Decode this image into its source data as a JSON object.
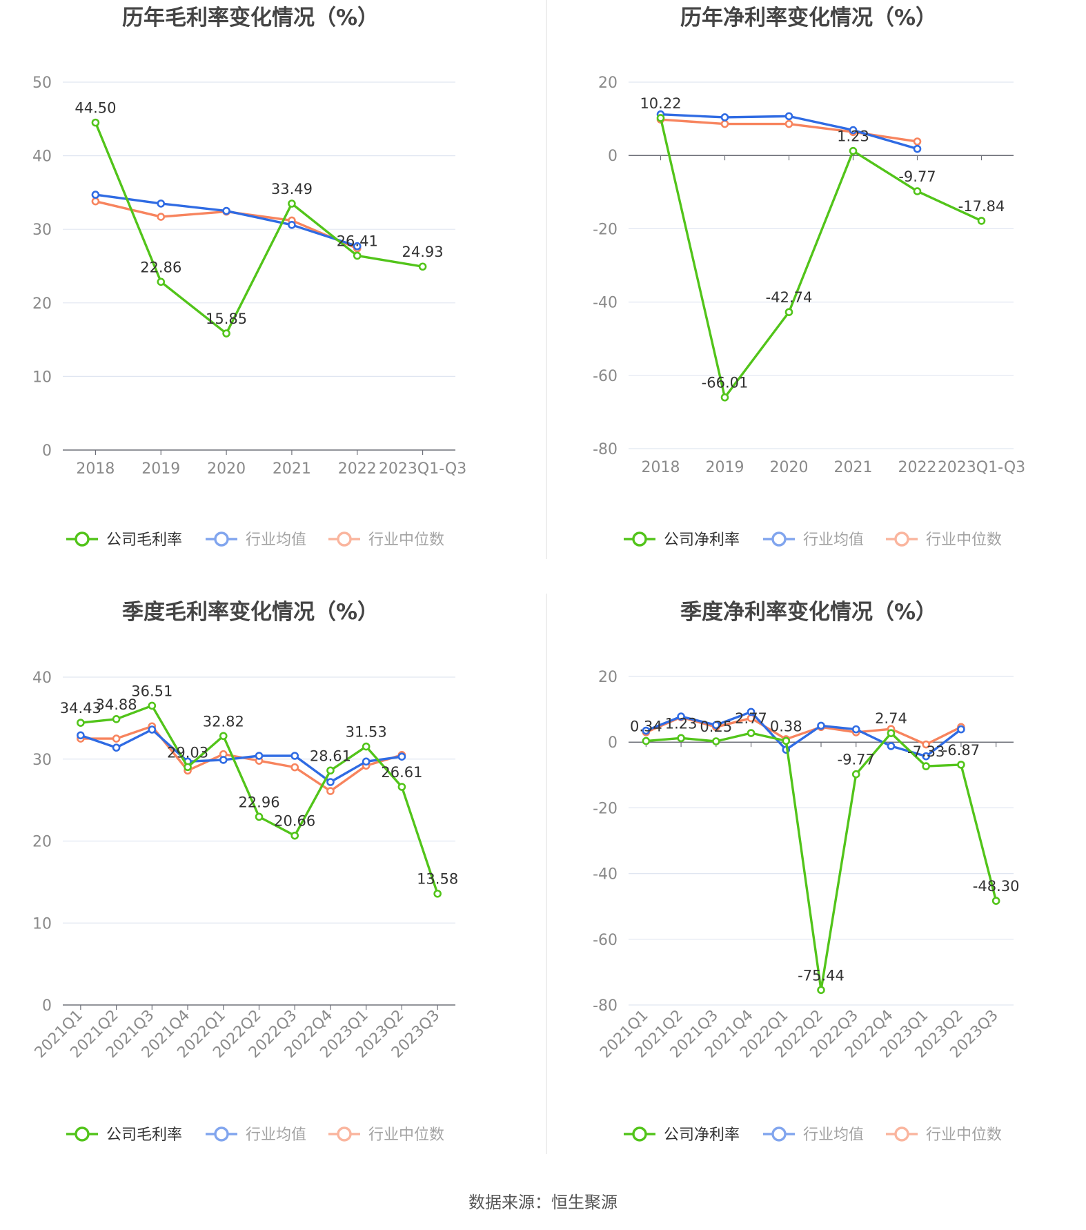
{
  "colors": {
    "company": "#52c41a",
    "avg": "#2f6be3",
    "median": "#f7845e"
  },
  "source_text": "数据来源：恒生聚源",
  "chart_data": [
    {
      "type": "line",
      "title": "历年毛利率变化情况（%）",
      "categories": [
        "2018",
        "2019",
        "2020",
        "2021",
        "2022",
        "2023Q1-Q3"
      ],
      "ylim": [
        0,
        50
      ],
      "yticks": [
        0,
        10,
        20,
        30,
        40,
        50
      ],
      "legend": "bottom",
      "series": [
        {
          "name": "公司毛利率",
          "key": "company",
          "values": [
            44.5,
            22.86,
            15.85,
            33.49,
            26.41,
            24.93
          ],
          "labels": [
            "44.50",
            "22.86",
            "15.85",
            "33.49",
            "26.41",
            "24.93"
          ]
        },
        {
          "name": "行业均值",
          "key": "avg",
          "values": [
            34.7,
            33.5,
            32.5,
            30.6,
            27.7,
            null
          ]
        },
        {
          "name": "行业中位数",
          "key": "median",
          "values": [
            33.8,
            31.7,
            32.4,
            31.2,
            27.4,
            null
          ]
        }
      ]
    },
    {
      "type": "line",
      "title": "历年净利率变化情况（%）",
      "categories": [
        "2018",
        "2019",
        "2020",
        "2021",
        "2022",
        "2023Q1-Q3"
      ],
      "ylim": [
        -80,
        20
      ],
      "yticks": [
        -80,
        -60,
        -40,
        -20,
        0,
        20
      ],
      "legend": "bottom",
      "series": [
        {
          "name": "公司净利率",
          "key": "company",
          "values": [
            10.22,
            -66.01,
            -42.74,
            1.23,
            -9.77,
            -17.84
          ],
          "labels": [
            "10.22",
            "-66.01",
            "-42.74",
            "1.23",
            "-9.77",
            "-17.84"
          ]
        },
        {
          "name": "行业均值",
          "key": "avg",
          "values": [
            11.2,
            10.4,
            10.7,
            6.9,
            1.8,
            null
          ]
        },
        {
          "name": "行业中位数",
          "key": "median",
          "values": [
            9.8,
            8.6,
            8.6,
            6.4,
            3.8,
            null
          ]
        }
      ]
    },
    {
      "type": "line",
      "title": "季度毛利率变化情况（%）",
      "categories": [
        "2021Q1",
        "2021Q2",
        "2021Q3",
        "2021Q4",
        "2022Q1",
        "2022Q2",
        "2022Q3",
        "2022Q4",
        "2023Q1",
        "2023Q2",
        "2023Q3"
      ],
      "ylim": [
        0,
        40
      ],
      "yticks": [
        0,
        10,
        20,
        30,
        40
      ],
      "legend": "bottom",
      "series": [
        {
          "name": "公司毛利率",
          "key": "company",
          "values": [
            34.43,
            34.88,
            36.51,
            29.03,
            32.82,
            22.96,
            20.66,
            28.61,
            31.53,
            26.61,
            13.58
          ],
          "labels": [
            "34.43",
            "34.88",
            "36.51",
            "29.03",
            "32.82",
            "22.96",
            "20.66",
            "28.61",
            "31.53",
            "26.61",
            "13.58"
          ]
        },
        {
          "name": "行业均值",
          "key": "avg",
          "values": [
            32.9,
            31.4,
            33.6,
            29.7,
            29.9,
            30.4,
            30.4,
            27.2,
            29.7,
            30.3,
            null
          ]
        },
        {
          "name": "行业中位数",
          "key": "median",
          "values": [
            32.5,
            32.5,
            34.0,
            28.6,
            30.6,
            29.8,
            29.0,
            26.1,
            29.2,
            30.5,
            null
          ]
        }
      ]
    },
    {
      "type": "line",
      "title": "季度净利率变化情况（%）",
      "categories": [
        "2021Q1",
        "2021Q2",
        "2021Q3",
        "2021Q4",
        "2022Q1",
        "2022Q2",
        "2022Q3",
        "2022Q4",
        "2023Q1",
        "2023Q2",
        "2023Q3"
      ],
      "ylim": [
        -80,
        20
      ],
      "yticks": [
        -80,
        -60,
        -40,
        -20,
        0,
        20
      ],
      "legend": "bottom",
      "series": [
        {
          "name": "公司净利率",
          "key": "company",
          "values": [
            0.34,
            1.23,
            0.25,
            2.77,
            0.38,
            -75.44,
            -9.77,
            2.74,
            -7.33,
            -6.87,
            -48.3
          ],
          "labels": [
            "0.34",
            "1.23",
            "0.25",
            "2.77",
            "0.38",
            "-75.44",
            "-9.77",
            "2.74",
            "-7.33",
            "-6.87",
            "-48.30"
          ]
        },
        {
          "name": "行业均值",
          "key": "avg",
          "values": [
            3.5,
            7.8,
            5.2,
            9.2,
            -2.3,
            5.0,
            3.9,
            -1.2,
            -4.3,
            3.9,
            null
          ]
        },
        {
          "name": "行业中位数",
          "key": "median",
          "values": [
            3.0,
            7.6,
            4.6,
            7.3,
            0.9,
            4.6,
            3.0,
            4.0,
            -0.7,
            4.6,
            null
          ]
        }
      ]
    }
  ]
}
